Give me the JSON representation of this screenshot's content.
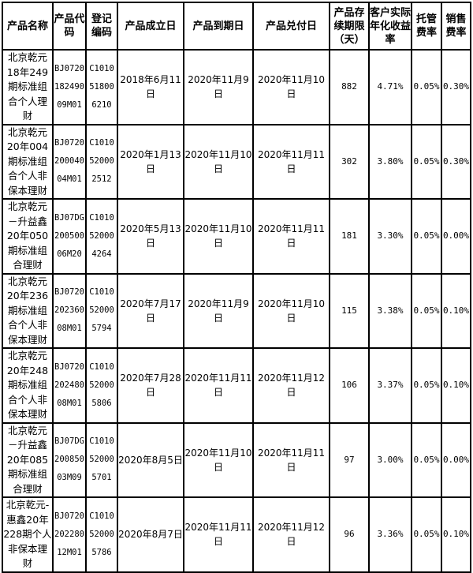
{
  "headers": [
    "产品名称",
    "产品代码",
    "登记编码",
    "产品成立日",
    "产品到期日",
    "产品兑付日",
    "产品存续期限（天）",
    "客户实际年化收益率",
    "托管费率",
    "销售费率"
  ],
  "rows": [
    {
      "name": "北京乾元18年249期标准组合个人理财",
      "code": "BJ072018249009M01",
      "reg": "C1010518006210",
      "start": "2018年6月11日",
      "end": "2020年11月9日",
      "pay": "2020年11月10日",
      "days": "882",
      "yield": "4.71%",
      "custody": "0.05%",
      "sales": "0.30%"
    },
    {
      "name": "北京乾元20年004期标准组合个人非保本理财",
      "code": "BJ072020004004M01",
      "reg": "C1010520002512",
      "start": "2020年1月13日",
      "end": "2020年11月10日",
      "pay": "2020年11月11日",
      "days": "302",
      "yield": "3.80%",
      "custody": "0.05%",
      "sales": "0.30%"
    },
    {
      "name": "北京乾元－升益鑫20年050期标准组合理财",
      "code": "BJ07DG20050006M20",
      "reg": "C1010520004264",
      "start": "2020年5月13日",
      "end": "2020年11月10日",
      "pay": "2020年11月11日",
      "days": "181",
      "yield": "3.30%",
      "custody": "0.05%",
      "sales": "0.00%"
    },
    {
      "name": "北京乾元20年236期标准组合个人非保本理财",
      "code": "BJ072020236008M01",
      "reg": "C1010520005794",
      "start": "2020年7月17日",
      "end": "2020年11月9日",
      "pay": "2020年11月10日",
      "days": "115",
      "yield": "3.38%",
      "custody": "0.05%",
      "sales": "0.10%"
    },
    {
      "name": "北京乾元20年248期标准组合个人非保本理财",
      "code": "BJ072020248008M01",
      "reg": "C1010520005806",
      "start": "2020年7月28日",
      "end": "2020年11月11日",
      "pay": "2020年11月12日",
      "days": "106",
      "yield": "3.37%",
      "custody": "0.05%",
      "sales": "0.10%"
    },
    {
      "name": "北京乾元－升益鑫20年085期标准组合理财",
      "code": "BJ07DG20085003M09",
      "reg": "C1010520005701",
      "start": "2020年8月5日",
      "end": "2020年11月10日",
      "pay": "2020年11月11日",
      "days": "97",
      "yield": "3.00%",
      "custody": "0.05%",
      "sales": "0.00%"
    },
    {
      "name": "北京乾元-惠鑫20年228期个人非保本理财",
      "code": "BJ072020228012M01",
      "reg": "C1010520005786",
      "start": "2020年8月7日",
      "end": "2020年11月11日",
      "pay": "2020年11月12日",
      "days": "96",
      "yield": "3.36%",
      "custody": "0.05%",
      "sales": "0.10%"
    }
  ]
}
